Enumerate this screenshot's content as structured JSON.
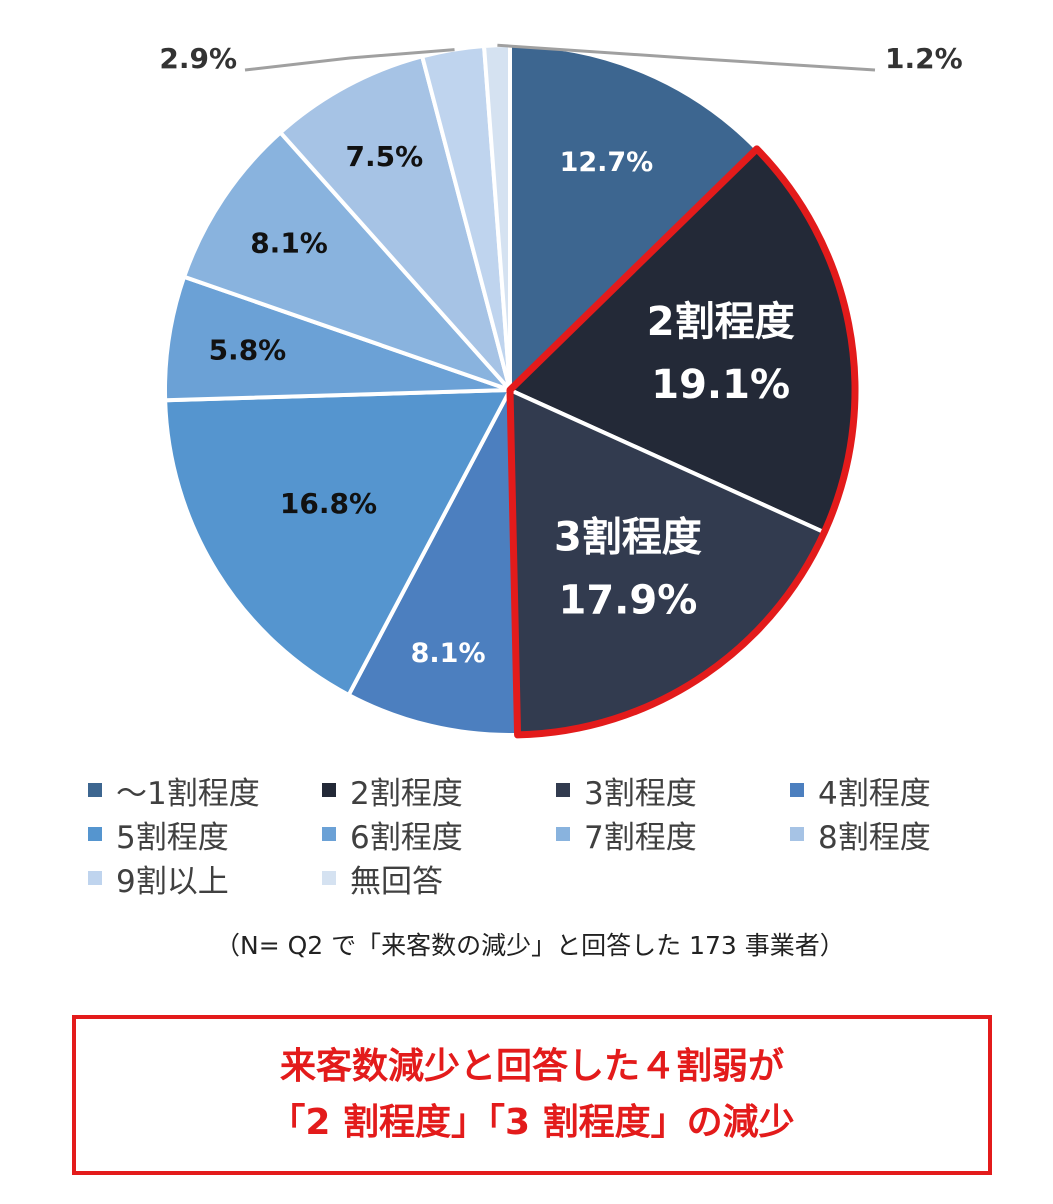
{
  "chart_data": {
    "type": "pie",
    "start_angle_deg": 0,
    "direction": "clockwise",
    "slices": [
      {
        "label": "〜1割程度",
        "value": 12.7,
        "value_label": "12.7%",
        "color": "#3d6690",
        "text_color": "#ffffff"
      },
      {
        "label": "2割程度",
        "value": 19.1,
        "value_label": "19.1%",
        "color": "#232937",
        "text_color": "#ffffff",
        "inner_label": "2割程度",
        "highlighted": true
      },
      {
        "label": "3割程度",
        "value": 17.9,
        "value_label": "17.9%",
        "color": "#323b4f",
        "text_color": "#ffffff",
        "inner_label": "3割程度",
        "highlighted": true
      },
      {
        "label": "4割程度",
        "value": 8.1,
        "value_label": "8.1%",
        "color": "#4c7fbf",
        "text_color": "#ffffff"
      },
      {
        "label": "5割程度",
        "value": 16.8,
        "value_label": "16.8%",
        "color": "#5595cf",
        "text_color": "#111111"
      },
      {
        "label": "6割程度",
        "value": 5.8,
        "value_label": "5.8%",
        "color": "#6ba1d6",
        "text_color": "#111111"
      },
      {
        "label": "7割程度",
        "value": 8.1,
        "value_label": "8.1%",
        "color": "#89b3de",
        "text_color": "#111111"
      },
      {
        "label": "8割程度",
        "value": 7.5,
        "value_label": "7.5%",
        "color": "#a6c3e5",
        "text_color": "#111111"
      },
      {
        "label": "9割以上",
        "value": 2.9,
        "value_label": "2.9%",
        "color": "#bfd4ee",
        "text_color": "#333333"
      },
      {
        "label": "無回答",
        "value": 1.2,
        "value_label": "1.2%",
        "color": "#d5e2f1",
        "text_color": "#333333"
      }
    ],
    "highlight_color": "#e31b1b"
  },
  "legend": [
    [
      "〜1割程度",
      "2割程度",
      "3割程度",
      "4割程度"
    ],
    [
      "5割程度",
      "6割程度",
      "7割程度",
      "8割程度"
    ],
    [
      "9割以上",
      "無回答"
    ]
  ],
  "note": "（N= Q2 で「来客数の減少」と回答した 173 事業者）",
  "callout": {
    "line1": "来客数減少と回答した４割弱が",
    "line2": "「2 割程度」「3 割程度」の減少"
  }
}
